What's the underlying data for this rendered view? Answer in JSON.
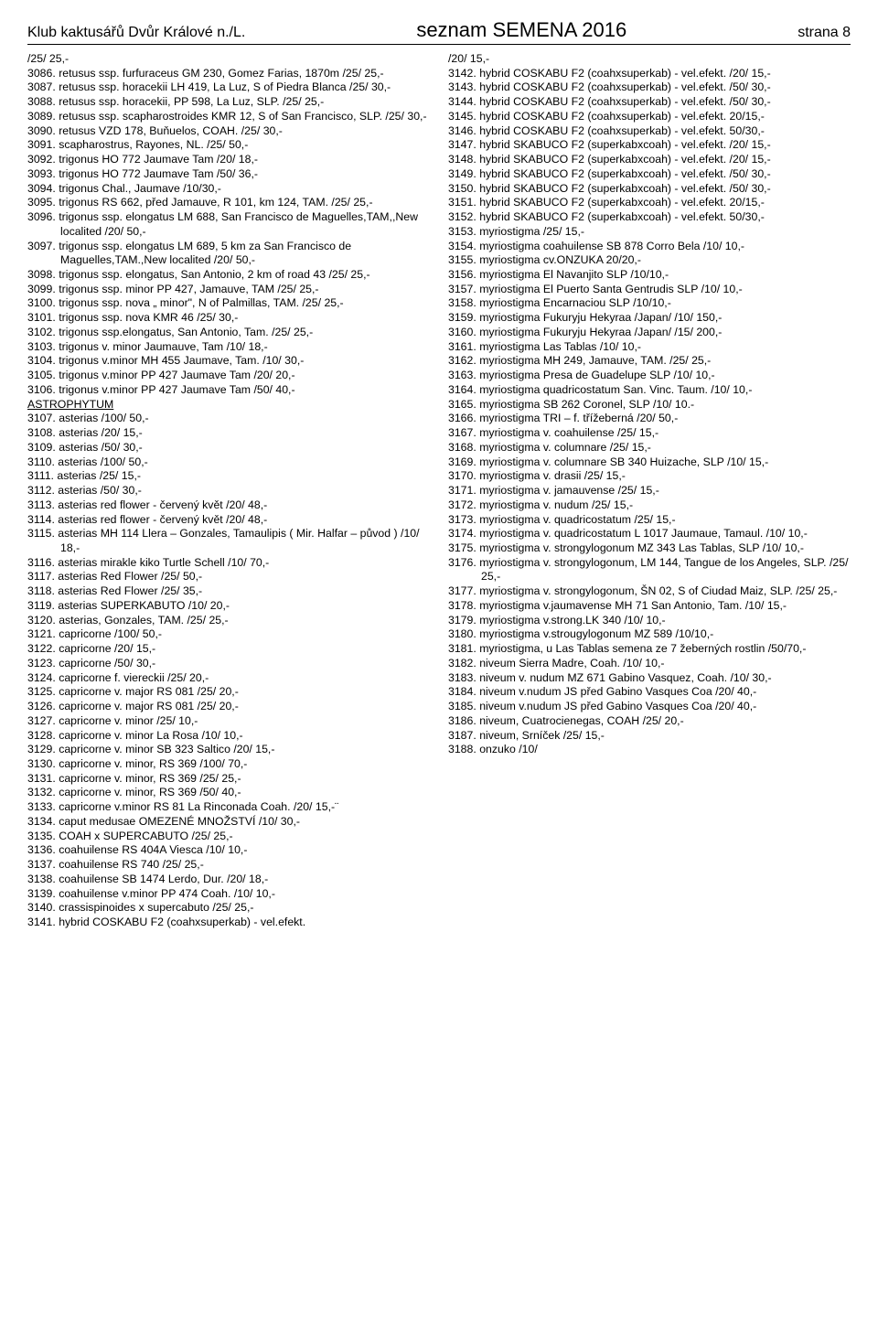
{
  "header": {
    "left": "Klub kaktusářů Dvůr Králové n./L.",
    "center": "seznam SEMENA 2016",
    "right": "strana 8"
  },
  "left_col": [
    "           /25/  25,-",
    "3086.  retusus ssp. furfuraceus GM 230, Gomez Farias, 1870m  /25/  25,-",
    "3087.  retusus ssp. horacekii LH 419, La Luz, S of Piedra Blanca  /25/  30,-",
    "3088.  retusus ssp. horacekii, PP 598, La Luz, SLP.   /25/  25,-",
    "3089.  retusus ssp. scapharostroides KMR 12, S of San Francisco, SLP.   /25/  30,-",
    "3090.  retusus VZD 178, Buňuelos, COAH.   /25/  30,-",
    "3091.  scapharostrus, Rayones, NL.   /25/  50,-",
    "3092.  trigonus HO 772 Jaumave Tam  /20/  18,-",
    "3093.  trigonus HO 772 Jaumave Tam  /50/  36,-",
    "3094.  trigonus Chal.,  Jaumave /10/30,-",
    "3095.  trigonus RS 662, před Jamauve, R 101, km 124, TAM.  /25/  25,-",
    "3096.  trigonus ssp. elongatus LM 688, San Francisco de Maguelles,TAM,,New localited  /20/  50,-",
    "3097.  trigonus ssp. elongatus LM 689, 5 km za San Francisco de Maguelles,TAM.,New localited   /20/  50,-",
    "3098.  trigonus ssp. elongatus, San Antonio, 2 km of road 43  /25/  25,-",
    "3099.  trigonus ssp. minor PP 427, Jamauve, TAM  /25/  25,-",
    "3100.  trigonus ssp. nova „ minor\", N of Palmillas, TAM.   /25/  25,-",
    "3101.  trigonus ssp. nova KMR 46  /25/  30,-",
    "3102.  trigonus ssp.elongatus, San Antonio, Tam.  /25/ 25,-",
    "3103.  trigonus v. minor Jaumauve, Tam  /10/  18,-",
    "3104.  trigonus v.minor MH 455 Jaumave, Tam.  /10/ 30,-",
    "3105.  trigonus v.minor PP 427 Jaumave Tam  /20/  20,-",
    "3106.  trigonus v.minor PP 427 Jaumave Tam  /50/  40,-"
  ],
  "section_astrophytum": "ASTROPHYTUM",
  "left_col2": [
    "3107.  asterias        /100/ 50,-",
    "3108.  asterias        /20/ 15,-",
    "3109.  asterias        /50/ 30,-",
    "3110.  asterias  /100/  50,-",
    "3111.  asterias  /25/  15,-",
    "3112.  asterias  /50/  30,-",
    "3113.  asterias  red flower - červený květ  /20/  48,-",
    "3114.  asterias  red flower - červený květ  /20/  48,-",
    "3115.  asterias MH 114 Llera – Gonzales, Tamaulipis ( Mir. Halfar –  původ )  /10/ 18,-",
    "3116.  asterias mirakle kiko Turtle Schell /10/ 70,-",
    "3117.  asterias Red Flower   /25/  50,-",
    "3118.  asterias Red Flower  /25/ 35,-",
    "3119.  asterias SUPERKABUTO  /10/ 20,-",
    "3120.  asterias, Gonzales, TAM.   /25/  25,-",
    "3121.  capricorne        /100/ 50,-",
    "3122.  capricorne        /20/ 15,-",
    "3123.  capricorne        /50/ 30,-",
    "3124.  capricorne f. viereckii /25/ 20,-",
    "3125.  capricorne v. major RS 081  /25/  20,-",
    "3126.  capricorne v. major RS 081 /25/ 20,-",
    "3127.  capricorne v. minor  /25/  10,-",
    "3128.  capricorne v. minor La Rosa /10/ 10,-",
    "3129.  capricorne v. minor SB 323 Saltico  /20/ 15,-",
    "3130.  capricorne v. minor, RS 369  /100/  70,-",
    "3131.  capricorne v. minor, RS 369  /25/  25,-",
    "3132.  capricorne v. minor, RS 369  /50/  40,-",
    "3133.  capricorne v.minor RS 81 La Rinconada Coah.  /20/ 15,-¨",
    "3134.  caput medusae OMEZENÉ MNOŽSTVÍ  /10/  30,-",
    "3135.  COAH x SUPERCABUTO /25/ 25,-",
    "3136.  coahuilense RS 404A Viesca /10/ 10,-",
    "3137.  coahuilense RS 740 /25/ 25,-",
    "3138.  coahuilense SB 1474 Lerdo, Dur.  /20/ 18,-",
    "3139.  coahuilense v.minor PP 474 Coah.                       /10/  10,-",
    "3140.  crassispinoides x supercabuto /25/ 25,-",
    "3141.  hybrid COSKABU F2 (coahxsuperkab) - vel.efekt."
  ],
  "right_col": [
    "           /20/  15,-",
    "3142.  hybrid COSKABU F2 (coahxsuperkab) - vel.efekt.   /20/  15,-",
    "3143.  hybrid COSKABU F2 (coahxsuperkab) - vel.efekt.   /50/  30,-",
    "3144.  hybrid COSKABU F2 (coahxsuperkab) - vel.efekt.    /50/  30,-",
    "3145.  hybrid COSKABU F2 (coahxsuperkab) - vel.efekt.  20/15,-",
    "3146.  hybrid COSKABU F2 (coahxsuperkab) - vel.efekt.  50/30,-",
    "3147.  hybrid SKABUCO F2 (superkabxcoah) - vel.efekt.   /20/  15,-",
    "3148.  hybrid SKABUCO F2 (superkabxcoah) - vel.efekt.   /20/  15,-",
    "3149.  hybrid SKABUCO F2 (superkabxcoah) - vel.efekt.   /50/  30,-",
    "3150.  hybrid SKABUCO F2 (superkabxcoah) - vel.efekt.   /50/  30,-",
    "3151.  hybrid SKABUCO F2 (superkabxcoah) - vel.efekt.  20/15,-",
    "3152.  hybrid SKABUCO F2 (superkabxcoah) - vel.efekt.  50/30,-",
    "3153.  myriostigma /25/ 15,-",
    "3154.  myriostigma coahuilense SB 878 Corro Bela /10/ 10,-",
    "3155.  myriostigma cv.ONZUKA  20/20,-",
    "3156.  myriostigma El Navanjito SLP  /10/10,-",
    "3157.  myriostigma El Puerto Santa Gentrudis SLP /10/ 10,-",
    "3158.  myriostigma Encarnaciou  SLP  /10/10,-",
    "3159.  myriostigma Fukuryju Hekyraa /Japan/ /10/ 150,-",
    "3160.  myriostigma Fukuryju Hekyraa /Japan/ /15/ 200,-",
    "3161.  myriostigma Las Tablas                       /10/ 10,-",
    "3162.  myriostigma MH 249, Jamauve, TAM.   /25/  25,-",
    "3163.  myriostigma Presa de Guadelupe SLP /10/ 10,-",
    "3164.  myriostigma quadricostatum San. Vinc. Taum.            /10/ 10,-",
    "3165.  myriostigma SB 262 Coronel, SLP   /10/ 10.-",
    "3166.  myriostigma TRI – f. třížeberná  /20/ 50,-",
    "3167.  myriostigma v. coahuilense  /25/  15,-",
    "3168.  myriostigma v. columnare  /25/  15,-",
    "3169.  myriostigma v. columnare SB 340 Huizache, SLP   /10/  15,-",
    "3170.  myriostigma v. drasii  /25/  15,-",
    "3171.  myriostigma v. jamauvense  /25/  15,-",
    "3172.  myriostigma v. nudum /25/ 15,-",
    "3173.  myriostigma v. quadricostatum /25/ 15,-",
    "3174.  myriostigma v. quadricostatum L 1017 Jaumaue, Tamaul.  /10/ 10,-",
    "3175.  myriostigma v. strongylogonum MZ 343 Las Tablas, SLP   /10/ 10,-",
    "3176.  myriostigma v. strongylogonum, LM 144, Tangue de los Angeles, SLP.   /25/  25,-",
    "3177.  myriostigma v. strongylogonum, ŠN 02, S of Ciudad Maiz, SLP.   /25/  25,-",
    "3178.  myriostigma v.jaumavense MH 71 San Antonio, Tam.         /10/ 15,-",
    "3179.  myriostigma v.strong.LK 340  /10/ 10,-",
    "3180.  myriostigma v.strougylogonum MZ 589 /10/10,-",
    "3181.  myriostigma, u Las Tablas  semena ze 7 žeberných rostlin /50/70,-",
    "3182.  niveum  Sierra Madre, Coah.        /10/ 10,-",
    "3183.  niveum v. nudum MZ 671 Gabino Vasquez, Coah.    /10/  30,-",
    "3184.  niveum v.nudum JS před Gabino Vasques Coa  /20/  40,-",
    "3185.  niveum v.nudum JS před Gabino Vasques Coa  /20/  40,-",
    "3186.  niveum, Cuatrocienegas, COAH /25/ 20,-",
    "3187.  niveum, Srníček  /25/  15,-",
    "3188.  onzuko /10/"
  ]
}
